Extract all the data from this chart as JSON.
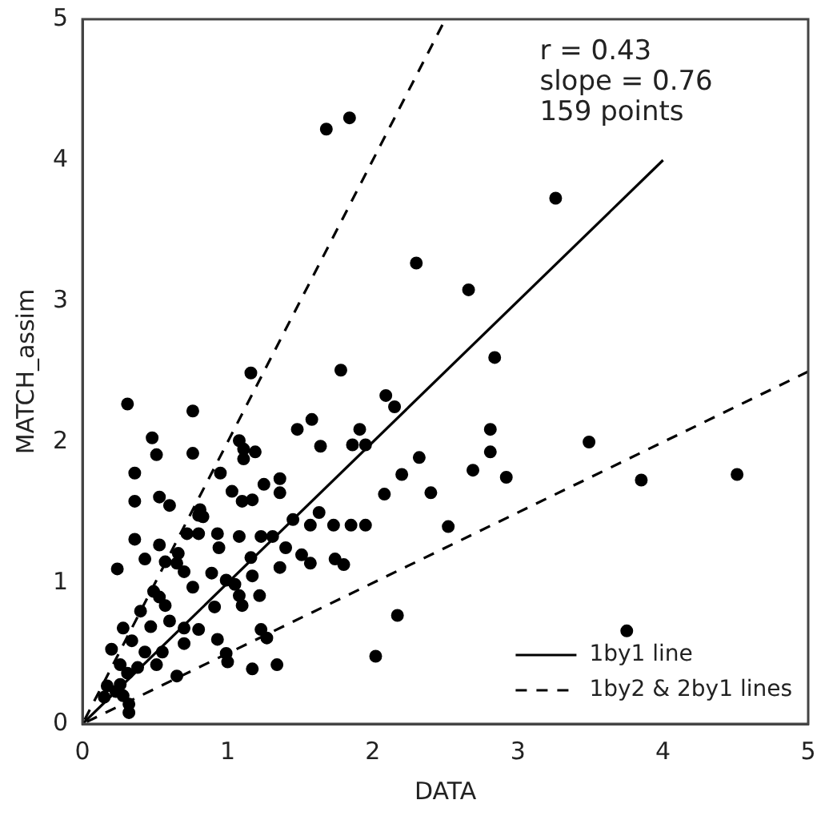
{
  "chart_data": {
    "type": "scatter",
    "xlabel": "DATA",
    "ylabel": "MATCH_assim",
    "xlim": [
      0,
      5
    ],
    "ylim": [
      0,
      5
    ],
    "xticks": [
      0,
      1,
      2,
      3,
      4,
      5
    ],
    "yticks": [
      0,
      1,
      2,
      3,
      4,
      5
    ],
    "grid": false,
    "legend": "bottom right",
    "marker": "circle",
    "annotations": [
      "r = 0.43",
      "slope = 0.76",
      "159 points"
    ],
    "series": [
      {
        "color": "#000000",
        "x": [
          1.68,
          1.84,
          3.26,
          2.3,
          2.66,
          2.84,
          1.16,
          1.78,
          0.31,
          0.76,
          2.09,
          2.15,
          1.95,
          2.81,
          2.81,
          2.32,
          2.2,
          2.69,
          2.92,
          3.49,
          3.85,
          4.51,
          2.08,
          2.4,
          1.95,
          2.52,
          2.17,
          2.02,
          3.75,
          0.48,
          0.51,
          0.76,
          1.48,
          1.58,
          1.64,
          1.91,
          1.86,
          1.08,
          1.11,
          1.19,
          1.11,
          0.36,
          0.95,
          1.25,
          1.36,
          1.36,
          0.36,
          0.53,
          0.6,
          1.03,
          1.1,
          1.17,
          0.81,
          0.83,
          1.45,
          1.63,
          1.57,
          1.73,
          1.85,
          0.72,
          0.8,
          0.93,
          0.36,
          0.53,
          0.94,
          1.08,
          1.23,
          1.31,
          1.4,
          0.43,
          0.57,
          0.66,
          1.16,
          1.51,
          1.57,
          1.74,
          1.8,
          0.24,
          0.7,
          0.89,
          1.36,
          0.65,
          0.99,
          1.05,
          1.17,
          1.22,
          0.49,
          0.53,
          0.76,
          1.08,
          1.1,
          0.57,
          0.91,
          0.6,
          0.4,
          0.7,
          0.8,
          0.28,
          0.47,
          0.2,
          0.34,
          0.43,
          0.7,
          0.93,
          1.23,
          1.27,
          0.99,
          1.0,
          0.26,
          0.38,
          0.51,
          0.55,
          0.65,
          1.17,
          1.34,
          0.31,
          0.17,
          0.23,
          0.28,
          0.15,
          0.32,
          0.32,
          0.26,
          0.8
        ],
        "values": [
          4.22,
          4.3,
          3.73,
          3.27,
          3.08,
          2.6,
          2.49,
          2.51,
          2.27,
          2.22,
          2.33,
          2.25,
          1.98,
          2.09,
          1.93,
          1.89,
          1.77,
          1.8,
          1.75,
          2.0,
          1.73,
          1.77,
          1.63,
          1.64,
          1.41,
          1.4,
          0.77,
          0.48,
          0.66,
          2.03,
          1.91,
          1.92,
          2.09,
          2.16,
          1.97,
          2.09,
          1.98,
          2.01,
          1.95,
          1.93,
          1.88,
          1.78,
          1.78,
          1.7,
          1.74,
          1.64,
          1.58,
          1.61,
          1.55,
          1.65,
          1.58,
          1.59,
          1.52,
          1.47,
          1.45,
          1.5,
          1.41,
          1.41,
          1.41,
          1.35,
          1.35,
          1.35,
          1.31,
          1.27,
          1.25,
          1.33,
          1.33,
          1.33,
          1.25,
          1.17,
          1.15,
          1.21,
          1.18,
          1.2,
          1.14,
          1.17,
          1.13,
          1.1,
          1.08,
          1.07,
          1.11,
          1.14,
          1.02,
          0.99,
          1.05,
          0.91,
          0.94,
          0.9,
          0.97,
          0.91,
          0.84,
          0.84,
          0.83,
          0.73,
          0.8,
          0.68,
          0.67,
          0.68,
          0.69,
          0.53,
          0.59,
          0.51,
          0.57,
          0.6,
          0.67,
          0.61,
          0.5,
          0.44,
          0.42,
          0.4,
          0.42,
          0.51,
          0.34,
          0.39,
          0.42,
          0.36,
          0.27,
          0.23,
          0.2,
          0.19,
          0.14,
          0.08,
          0.28,
          1.48
        ]
      },
      {
        "type": "line",
        "name": "1by1 line",
        "color": "#000000",
        "line_style": "solid",
        "marker": "none",
        "x": [
          0,
          4
        ],
        "values": [
          0,
          4
        ]
      },
      {
        "type": "line",
        "name": "1by2 & 2by1 lines",
        "color": "#000000",
        "line_style": "dashed",
        "marker": "none",
        "x": [
          5,
          0,
          2.5
        ],
        "values": [
          2.5,
          0,
          5
        ]
      }
    ]
  }
}
